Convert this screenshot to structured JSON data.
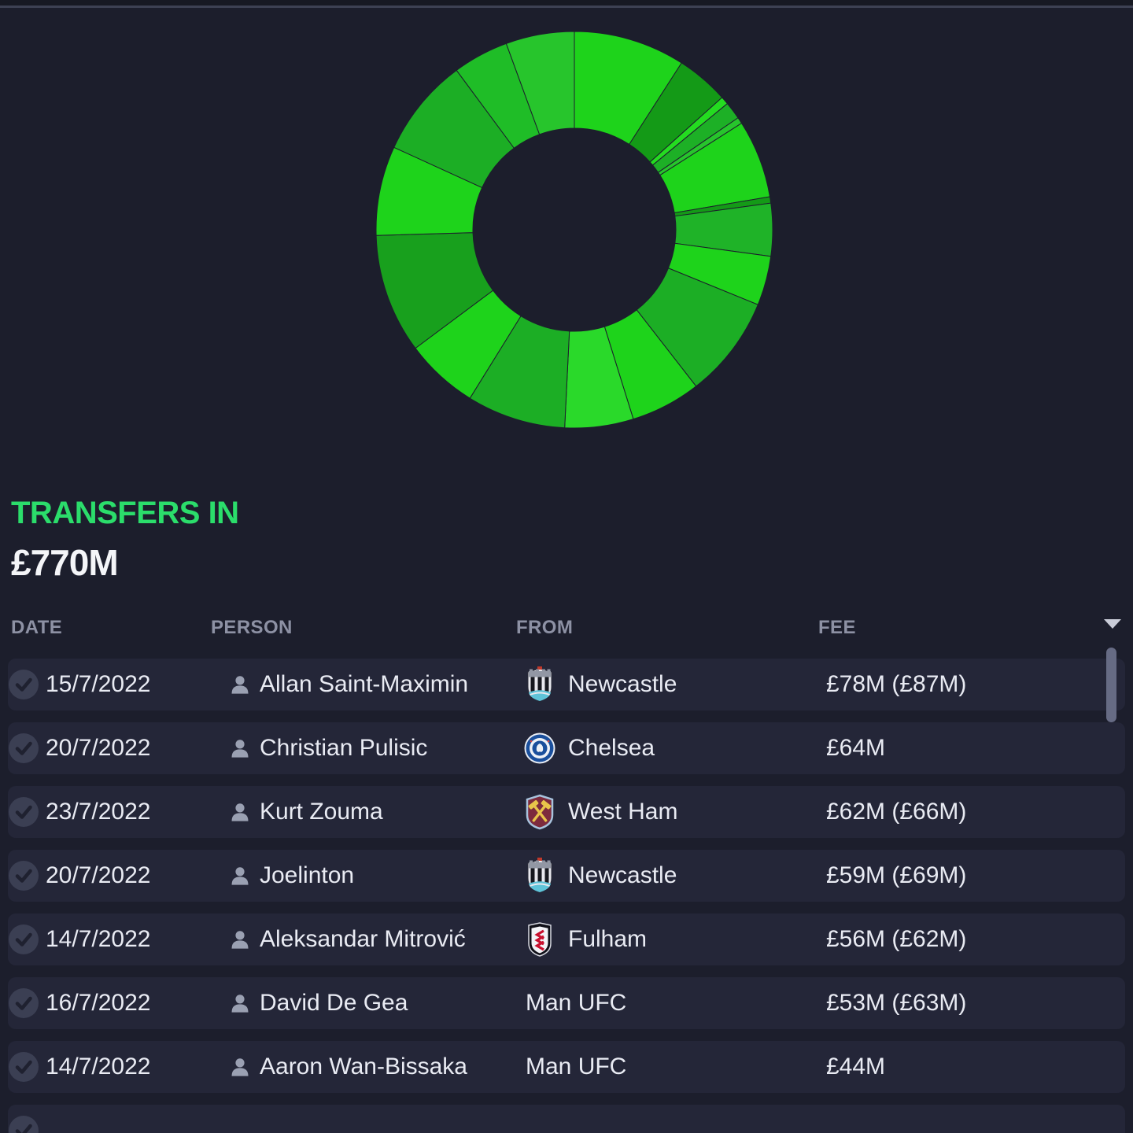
{
  "summary": {
    "title": "TRANSFERS IN",
    "amount": "£770M",
    "accent_color": "#2bdd6b"
  },
  "table": {
    "headers": [
      {
        "label": "DATE"
      },
      {
        "label": "PERSON"
      },
      {
        "label": "FROM"
      },
      {
        "label": "FEE"
      }
    ],
    "sort_icon": "caret-down-icon",
    "rows": [
      {
        "date": "15/7/2022",
        "person": "Allan Saint-Maximin",
        "from": "Newcastle",
        "badge": "newcastle",
        "fee": "£78M (£87M)"
      },
      {
        "date": "20/7/2022",
        "person": "Christian Pulisic",
        "from": "Chelsea",
        "badge": "chelsea",
        "fee": "£64M"
      },
      {
        "date": "23/7/2022",
        "person": "Kurt Zouma",
        "from": "West Ham",
        "badge": "west-ham",
        "fee": "£62M (£66M)"
      },
      {
        "date": "20/7/2022",
        "person": "Joelinton",
        "from": "Newcastle",
        "badge": "newcastle",
        "fee": "£59M (£69M)"
      },
      {
        "date": "14/7/2022",
        "person": "Aleksandar Mitrović",
        "from": "Fulham",
        "badge": "fulham",
        "fee": "£56M (£62M)"
      },
      {
        "date": "16/7/2022",
        "person": "David De Gea",
        "from": "Man UFC",
        "badge": null,
        "fee": "£53M (£63M)"
      },
      {
        "date": "14/7/2022",
        "person": "Aaron Wan-Bissaka",
        "from": "Man UFC",
        "badge": null,
        "fee": "£44M"
      },
      {
        "date": "",
        "person": "",
        "from": "",
        "badge": null,
        "fee": "",
        "partial": true
      }
    ]
  },
  "chart_data": {
    "type": "donut",
    "title": "TRANSFERS IN",
    "total_label": "£770M",
    "total_value_m": 770,
    "unit": "£M",
    "start_angle_deg": 0,
    "direction": "clockwise",
    "inner_radius_px": 129,
    "outer_radius_px": 252,
    "segments": [
      {
        "value_m": 70,
        "color": "#1ed31b"
      },
      {
        "value_m": 33,
        "color": "#149a17"
      },
      {
        "value_m": 5,
        "color": "#24dc20"
      },
      {
        "value_m": 11,
        "color": "#1db026"
      },
      {
        "value_m": 4,
        "color": "#27c52c"
      },
      {
        "value_m": 49,
        "color": "#1ed31b"
      },
      {
        "value_m": 4,
        "color": "#149a17"
      },
      {
        "value_m": 33,
        "color": "#1fb328"
      },
      {
        "value_m": 31,
        "color": "#1ed31b"
      },
      {
        "value_m": 64,
        "color": "#1cae25"
      },
      {
        "value_m": 44,
        "color": "#1ed31b"
      },
      {
        "value_m": 43,
        "color": "#2ad92a"
      },
      {
        "value_m": 62,
        "color": "#1cae25"
      },
      {
        "value_m": 46,
        "color": "#1ed31b"
      },
      {
        "value_m": 75,
        "color": "#18a01d"
      },
      {
        "value_m": 56,
        "color": "#1ed31b"
      },
      {
        "value_m": 62,
        "color": "#1cae25"
      },
      {
        "value_m": 35,
        "color": "#1fbd27"
      },
      {
        "value_m": 43,
        "color": "#27c52c"
      }
    ]
  }
}
